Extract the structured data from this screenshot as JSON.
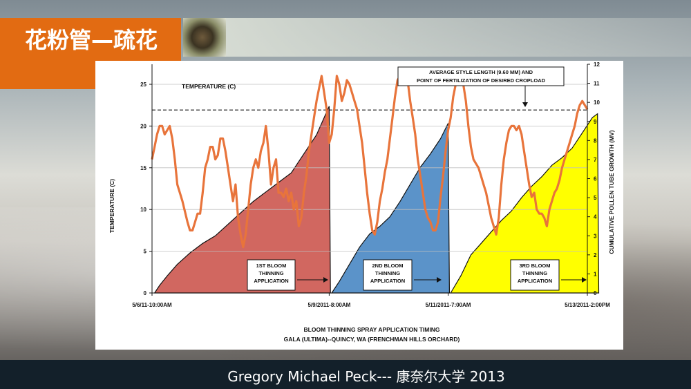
{
  "slide": {
    "title": "花粉管—疏花",
    "footer": "Gregory Michael Peck--- 康奈尔大学   2013"
  },
  "chart_data": {
    "type": "line",
    "title": "BLOOM THINNING SPRAY APPLICATION TIMING",
    "subtitle": "GALA (ULTIMA)--QUINCY, WA (FRENCHMAN HILLS ORCHARD)",
    "ylabel": "TEMPERATURE (C)",
    "y2label": "CUMULATIVE POLLEN TUBE GROWTH (MV)",
    "legend_temperature": "TEMPERATURE (C)",
    "ylim": [
      0,
      27.4
    ],
    "y2lim": [
      0,
      12
    ],
    "yticks": [
      "0",
      "5",
      "10",
      "15",
      "20",
      "25"
    ],
    "y2ticks": [
      "0",
      "1",
      "2",
      "3",
      "4",
      "5",
      "6",
      "7",
      "8",
      "9",
      "10",
      "11",
      "12"
    ],
    "xticks": [
      "5/6/11-10:00AM",
      "5/9/2011-8:00AM",
      "5/11/2011-7:00AM",
      "5/13/2011-2:00PM"
    ],
    "xlim_hours": [
      0,
      172
    ],
    "xtick_hours": [
      0,
      70,
      117,
      172
    ],
    "style_length_line": {
      "value": 9.6,
      "label_line1": "AVERAGE STYLE LENGTH (9.60 MM) AND",
      "label_line2": "POINT OF FERTILIZATION OF DESIRED CROPLOAD"
    },
    "annotations": [
      {
        "line1": "1ST BLOOM",
        "line2": "THINNING",
        "line3": "APPLICATION"
      },
      {
        "line1": "2ND BLOOM",
        "line2": "THINNING",
        "line3": "APPLICATION"
      },
      {
        "line1": "3RD BLOOM",
        "line2": "THINNING",
        "line3": "APPLICATION"
      }
    ],
    "colors": {
      "temperature": "#e8743b",
      "area1": "#d16760",
      "area2": "#5b93c9",
      "area3": "#ffff00"
    },
    "series": [
      {
        "name": "TEMPERATURE (C)",
        "axis": "left",
        "points": [
          [
            0,
            16
          ],
          [
            1,
            17.5
          ],
          [
            2,
            19
          ],
          [
            3,
            20
          ],
          [
            4,
            20
          ],
          [
            5,
            19
          ],
          [
            6,
            19.5
          ],
          [
            7,
            20
          ],
          [
            8,
            18.5
          ],
          [
            9,
            16
          ],
          [
            10,
            13
          ],
          [
            11,
            12
          ],
          [
            12,
            11
          ],
          [
            14,
            8.5
          ],
          [
            15,
            7.5
          ],
          [
            16,
            7.5
          ],
          [
            17,
            8.5
          ],
          [
            18,
            9.5
          ],
          [
            19,
            9.5
          ],
          [
            20,
            12
          ],
          [
            21,
            15
          ],
          [
            22,
            16
          ],
          [
            23,
            17.5
          ],
          [
            24,
            17.5
          ],
          [
            25,
            16
          ],
          [
            26,
            16.5
          ],
          [
            27,
            18.5
          ],
          [
            28,
            18.5
          ],
          [
            29,
            17
          ],
          [
            30,
            15
          ],
          [
            31,
            13
          ],
          [
            32,
            11
          ],
          [
            33,
            13
          ],
          [
            34,
            9
          ],
          [
            35,
            7
          ],
          [
            36,
            5.5
          ],
          [
            37,
            7
          ],
          [
            38,
            10
          ],
          [
            39,
            13
          ],
          [
            40,
            15
          ],
          [
            41,
            16
          ],
          [
            42,
            15
          ],
          [
            43,
            17
          ],
          [
            44,
            18
          ],
          [
            45,
            20
          ],
          [
            46,
            17
          ],
          [
            47,
            13
          ],
          [
            48,
            15
          ],
          [
            49,
            16
          ],
          [
            50,
            12
          ],
          [
            51,
            12
          ],
          [
            52,
            11.5
          ],
          [
            53,
            12.5
          ],
          [
            54,
            11
          ],
          [
            55,
            12
          ],
          [
            56,
            10
          ],
          [
            57,
            11
          ],
          [
            58,
            8
          ],
          [
            59,
            9
          ],
          [
            60,
            12
          ],
          [
            61,
            14
          ],
          [
            62,
            17
          ],
          [
            63,
            19
          ],
          [
            64,
            21
          ],
          [
            65,
            23
          ],
          [
            66,
            24.5
          ],
          [
            67,
            26
          ],
          [
            68,
            24
          ],
          [
            69,
            22
          ],
          [
            70,
            18
          ],
          [
            71,
            19
          ],
          [
            72,
            22
          ],
          [
            73,
            26
          ],
          [
            74,
            25
          ],
          [
            75,
            23
          ],
          [
            76,
            24
          ],
          [
            77,
            25.5
          ],
          [
            78,
            25
          ],
          [
            79,
            24
          ],
          [
            80,
            23
          ],
          [
            81,
            22
          ],
          [
            82,
            20
          ],
          [
            83,
            18
          ],
          [
            84,
            15
          ],
          [
            85,
            12
          ],
          [
            86,
            9.5
          ],
          [
            87,
            7.5
          ],
          [
            88,
            7
          ],
          [
            89,
            8.5
          ],
          [
            90,
            11
          ],
          [
            91,
            12.5
          ],
          [
            92,
            14.5
          ],
          [
            93,
            16
          ],
          [
            94,
            18.5
          ],
          [
            95,
            21
          ],
          [
            96,
            23.5
          ],
          [
            97,
            25.5
          ],
          [
            98,
            26
          ],
          [
            99,
            26
          ],
          [
            100,
            26
          ],
          [
            101,
            25.5
          ],
          [
            102,
            23
          ],
          [
            103,
            21
          ],
          [
            104,
            19
          ],
          [
            105,
            16
          ],
          [
            106,
            14
          ],
          [
            107,
            12
          ],
          [
            108,
            10
          ],
          [
            109,
            9
          ],
          [
            110,
            8.5
          ],
          [
            111,
            7.5
          ],
          [
            112,
            7.5
          ],
          [
            113,
            8.5
          ],
          [
            114,
            11.5
          ],
          [
            115,
            14
          ],
          [
            116,
            17
          ],
          [
            117,
            19.5
          ],
          [
            118,
            21
          ],
          [
            119,
            23.5
          ],
          [
            120,
            25
          ],
          [
            121,
            26
          ],
          [
            122,
            25.5
          ],
          [
            123,
            25
          ],
          [
            124,
            23
          ],
          [
            125,
            20
          ],
          [
            126,
            17.5
          ],
          [
            127,
            16
          ],
          [
            128,
            15.5
          ],
          [
            129,
            15
          ],
          [
            130,
            14
          ],
          [
            131,
            13
          ],
          [
            132,
            12
          ],
          [
            133,
            10.5
          ],
          [
            134,
            9
          ],
          [
            135,
            8
          ],
          [
            136,
            7
          ],
          [
            137,
            9
          ],
          [
            138,
            13
          ],
          [
            139,
            16
          ],
          [
            140,
            18
          ],
          [
            141,
            19.5
          ],
          [
            142,
            20
          ],
          [
            143,
            20
          ],
          [
            144,
            19.5
          ],
          [
            145,
            20
          ],
          [
            146,
            19
          ],
          [
            147,
            17
          ],
          [
            148,
            15
          ],
          [
            149,
            13
          ],
          [
            150,
            11.5
          ],
          [
            151,
            12
          ],
          [
            152,
            10
          ],
          [
            153,
            9.5
          ],
          [
            154,
            9.5
          ],
          [
            155,
            9
          ],
          [
            156,
            8
          ],
          [
            157,
            10
          ],
          [
            158,
            11
          ],
          [
            159,
            12
          ],
          [
            160,
            12.5
          ],
          [
            161,
            13.5
          ],
          [
            162,
            15
          ],
          [
            163,
            16
          ],
          [
            164,
            17
          ],
          [
            165,
            18
          ],
          [
            166,
            19
          ],
          [
            167,
            20
          ],
          [
            168,
            21.5
          ],
          [
            169,
            22.5
          ],
          [
            170,
            23
          ],
          [
            171,
            22.5
          ],
          [
            172,
            22
          ]
        ]
      },
      {
        "name": "",
        "axis": "right",
        "points": [
          [
            1,
            0
          ],
          [
            3,
            0.4
          ],
          [
            6,
            0.9
          ],
          [
            10,
            1.5
          ],
          [
            15,
            2.1
          ],
          [
            20,
            2.6
          ],
          [
            25,
            3.0
          ],
          [
            30,
            3.6
          ],
          [
            35,
            4.2
          ],
          [
            40,
            4.8
          ],
          [
            45,
            5.3
          ],
          [
            50,
            5.8
          ],
          [
            55,
            6.3
          ],
          [
            60,
            7.3
          ],
          [
            65,
            8.3
          ],
          [
            70,
            9.8
          ],
          [
            70.5,
            0
          ]
        ]
      },
      {
        "name": "",
        "axis": "right",
        "points": [
          [
            71,
            0
          ],
          [
            74,
            0.6
          ],
          [
            78,
            1.5
          ],
          [
            82,
            2.4
          ],
          [
            86,
            3.1
          ],
          [
            90,
            3.5
          ],
          [
            94,
            4.0
          ],
          [
            98,
            4.8
          ],
          [
            102,
            5.7
          ],
          [
            106,
            6.6
          ],
          [
            110,
            7.3
          ],
          [
            114,
            8.1
          ],
          [
            117,
            8.9
          ],
          [
            117.5,
            0
          ]
        ]
      },
      {
        "name": "",
        "axis": "right",
        "points": [
          [
            118,
            0
          ],
          [
            122,
            0.9
          ],
          [
            126,
            2.0
          ],
          [
            130,
            2.6
          ],
          [
            134,
            3.2
          ],
          [
            138,
            3.8
          ],
          [
            142,
            4.3
          ],
          [
            146,
            5.0
          ],
          [
            150,
            5.6
          ],
          [
            154,
            6.1
          ],
          [
            158,
            6.7
          ],
          [
            162,
            7.1
          ],
          [
            166,
            7.6
          ],
          [
            170,
            8.4
          ],
          [
            174,
            9.2
          ],
          [
            176,
            9.4
          ],
          [
            176.5,
            0
          ]
        ]
      }
    ]
  }
}
